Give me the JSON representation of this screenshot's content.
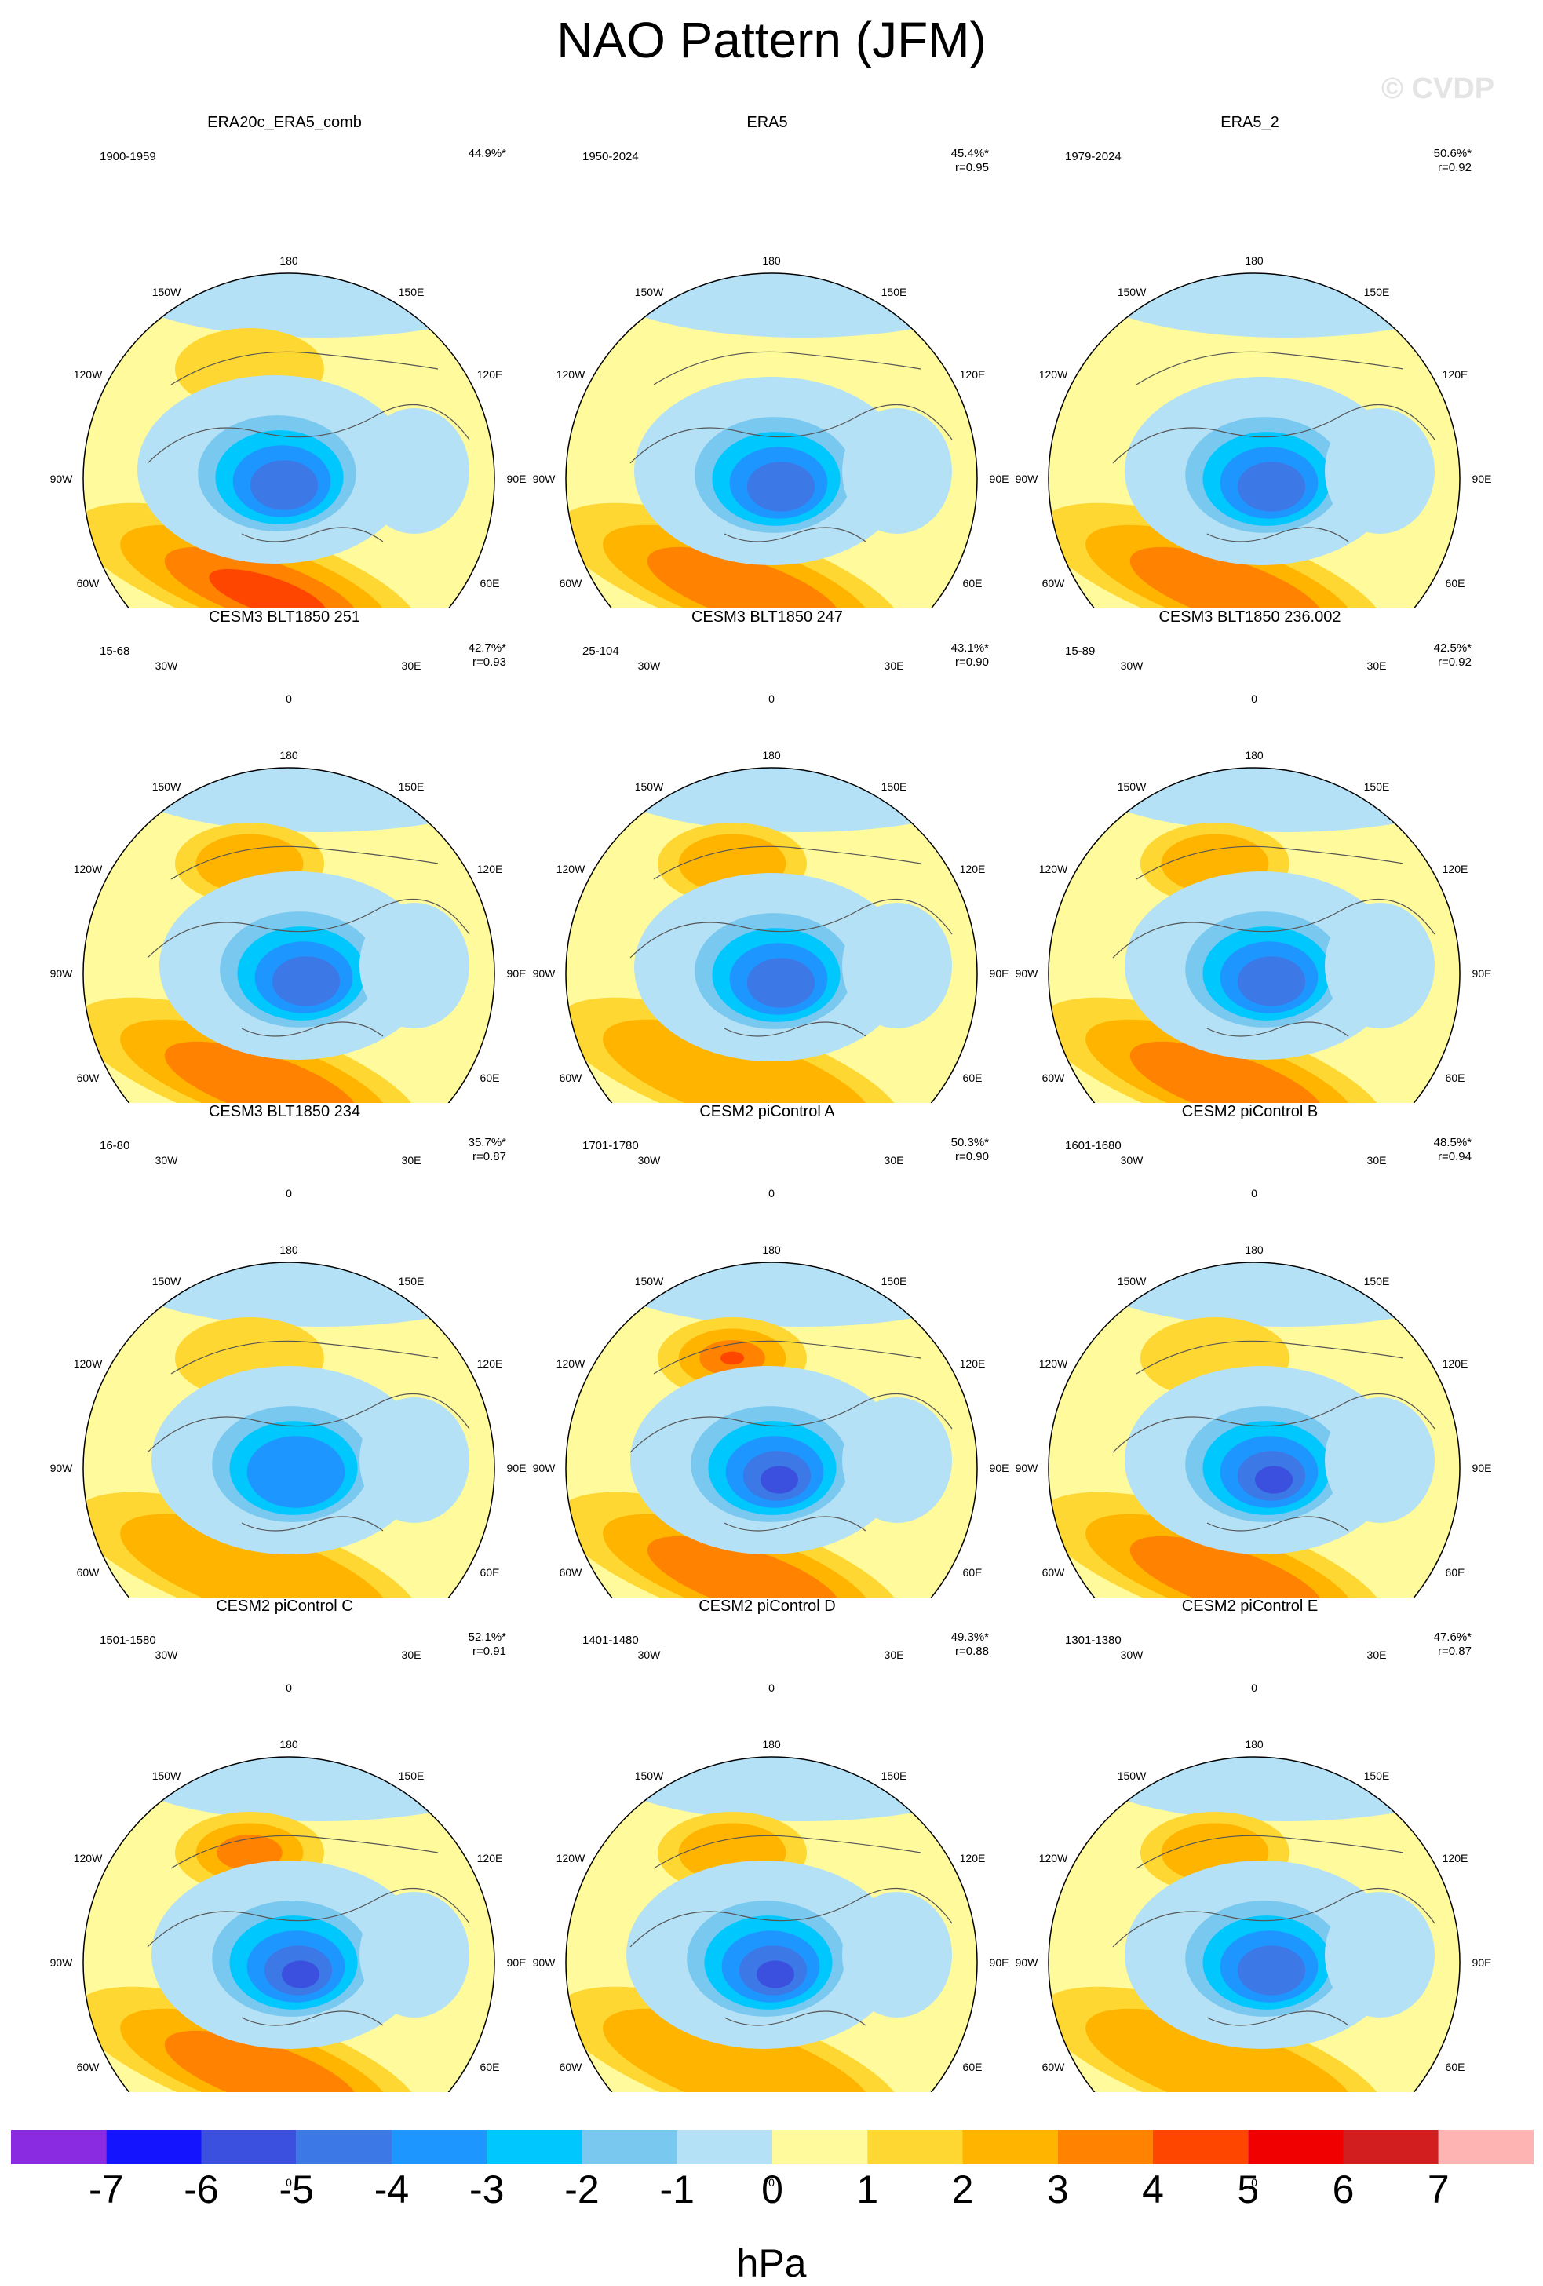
{
  "title": "NAO Pattern (JFM)",
  "watermark": "© CVDP",
  "lon_labels": {
    "top": "180",
    "bottom": "0",
    "left": "90W",
    "right": "90E",
    "ul1": "150W",
    "ul2": "120W",
    "ur1": "150E",
    "ur2": "120E",
    "ll1": "60W",
    "ll2": "30W",
    "lr1": "60E",
    "lr2": "30E"
  },
  "panels": [
    {
      "title": "ERA20c_ERA5_comb",
      "period": "1900-1959",
      "pct": "44.9%*",
      "r": "",
      "high_level": 4,
      "low_level": 5,
      "low_shift": [
        -18,
        8
      ],
      "pac_high": true,
      "pac_level": 1
    },
    {
      "title": "ERA5",
      "period": "1950-2024",
      "pct": "45.4%*",
      "r": "r=0.95",
      "high_level": 3,
      "low_level": 5,
      "low_shift": [
        0,
        10
      ],
      "pac_high": false,
      "pac_level": 0
    },
    {
      "title": "ERA5_2",
      "period": "1979-2024",
      "pct": "50.6%*",
      "r": "r=0.92",
      "high_level": 3,
      "low_level": 5,
      "low_shift": [
        10,
        10
      ],
      "pac_high": false,
      "pac_level": 0
    },
    {
      "title": "CESM3 BLT1850 251",
      "period": "15-68",
      "pct": "42.7%*",
      "r": "r=0.93",
      "high_level": 3,
      "low_level": 5,
      "low_shift": [
        10,
        10
      ],
      "pac_high": true,
      "pac_level": 2
    },
    {
      "title": "CESM3 BLT1850 247",
      "period": "25-104",
      "pct": "43.1%*",
      "r": "r=0.90",
      "high_level": 2,
      "low_level": 5,
      "low_shift": [
        0,
        12
      ],
      "pac_high": true,
      "pac_level": 2
    },
    {
      "title": "CESM3 BLT1850 236.002",
      "period": "15-89",
      "pct": "42.5%*",
      "r": "r=0.92",
      "high_level": 3,
      "low_level": 5,
      "low_shift": [
        10,
        10
      ],
      "pac_high": true,
      "pac_level": 2
    },
    {
      "title": "CESM3 BLT1850 234",
      "period": "16-80",
      "pct": "35.7%*",
      "r": "r=0.87",
      "high_level": 2,
      "low_level": 4,
      "low_shift": [
        0,
        10
      ],
      "pac_high": true,
      "pac_level": 1
    },
    {
      "title": "CESM2 piControl A",
      "period": "1701-1780",
      "pct": "50.3%*",
      "r": "r=0.90",
      "high_level": 3,
      "low_level": 6,
      "low_shift": [
        -5,
        10
      ],
      "pac_high": true,
      "pac_level": 4
    },
    {
      "title": "CESM2 piControl B",
      "period": "1601-1680",
      "pct": "48.5%*",
      "r": "r=0.94",
      "high_level": 3,
      "low_level": 6,
      "low_shift": [
        10,
        10
      ],
      "pac_high": true,
      "pac_level": 1
    },
    {
      "title": "CESM2 piControl C",
      "period": "1501-1580",
      "pct": "52.1%*",
      "r": "r=0.91",
      "high_level": 3,
      "low_level": 6,
      "low_shift": [
        0,
        10
      ],
      "pac_high": true,
      "pac_level": 3
    },
    {
      "title": "CESM2 piControl D",
      "period": "1401-1480",
      "pct": "49.3%*",
      "r": "r=0.88",
      "high_level": 2,
      "low_level": 6,
      "low_shift": [
        -10,
        10
      ],
      "pac_high": true,
      "pac_level": 2
    },
    {
      "title": "CESM2 piControl E",
      "period": "1301-1380",
      "pct": "47.6%*",
      "r": "r=0.87",
      "high_level": 2,
      "low_level": 5,
      "low_shift": [
        10,
        10
      ],
      "pac_high": true,
      "pac_level": 2
    }
  ],
  "colorbar": {
    "unit": "hPa",
    "colors": [
      "#8a2be2",
      "#1414ff",
      "#3c50e0",
      "#3c78e6",
      "#1e96ff",
      "#00c8ff",
      "#78c8f0",
      "#b4e1f5",
      "#fffa9b",
      "#ffd732",
      "#ffb400",
      "#ff8200",
      "#ff4600",
      "#f00000",
      "#d21e1e",
      "#ffb4b4"
    ],
    "ticks": [
      "-7",
      "-6",
      "-5",
      "-4",
      "-3",
      "-2",
      "-1",
      "0",
      "1",
      "2",
      "3",
      "4",
      "5",
      "6",
      "7"
    ]
  }
}
